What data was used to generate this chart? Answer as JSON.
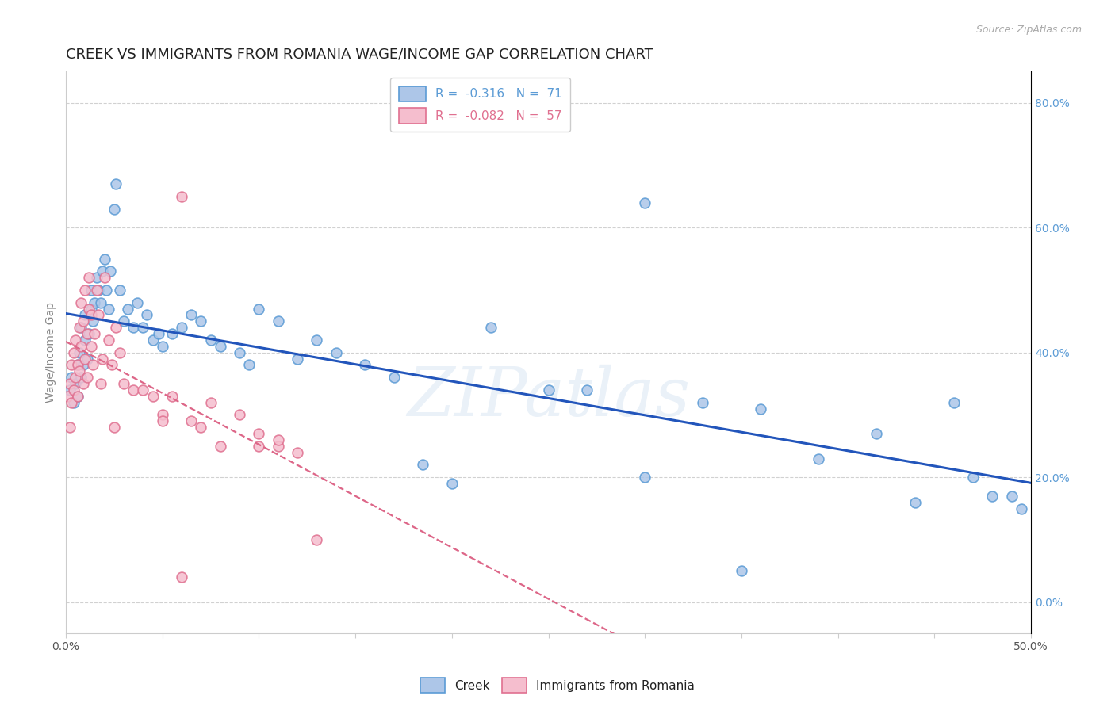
{
  "title": "CREEK VS IMMIGRANTS FROM ROMANIA WAGE/INCOME GAP CORRELATION CHART",
  "source": "Source: ZipAtlas.com",
  "ylabel": "Wage/Income Gap",
  "xlim": [
    0.0,
    0.5
  ],
  "ylim": [
    -0.05,
    0.85
  ],
  "xticks": [
    0.0,
    0.05,
    0.1,
    0.15,
    0.2,
    0.25,
    0.3,
    0.35,
    0.4,
    0.45,
    0.5
  ],
  "xticklabels_show": [
    "0.0%",
    "50.0%"
  ],
  "yticks": [
    0.0,
    0.2,
    0.4,
    0.6,
    0.8
  ],
  "yticklabels_right": [
    "0.0%",
    "20.0%",
    "40.0%",
    "60.0%",
    "80.0%"
  ],
  "creek_color": "#adc6e8",
  "romania_color": "#f5bece",
  "creek_edge_color": "#5b9bd5",
  "romania_edge_color": "#e07090",
  "trend_creek_color": "#2255bb",
  "trend_romania_color": "#dd6688",
  "watermark": "ZIPatlas",
  "legend_R_creek": "-0.316",
  "legend_N_creek": "71",
  "legend_R_romania": "-0.082",
  "legend_N_romania": "57",
  "creek_x": [
    0.002,
    0.003,
    0.004,
    0.005,
    0.006,
    0.006,
    0.007,
    0.008,
    0.008,
    0.009,
    0.01,
    0.01,
    0.011,
    0.012,
    0.013,
    0.013,
    0.014,
    0.015,
    0.016,
    0.017,
    0.018,
    0.019,
    0.02,
    0.021,
    0.022,
    0.023,
    0.025,
    0.026,
    0.028,
    0.03,
    0.032,
    0.035,
    0.037,
    0.04,
    0.042,
    0.045,
    0.048,
    0.05,
    0.055,
    0.06,
    0.065,
    0.07,
    0.075,
    0.08,
    0.09,
    0.095,
    0.1,
    0.11,
    0.12,
    0.13,
    0.14,
    0.155,
    0.17,
    0.185,
    0.2,
    0.22,
    0.25,
    0.27,
    0.3,
    0.33,
    0.36,
    0.39,
    0.42,
    0.44,
    0.46,
    0.47,
    0.48,
    0.49,
    0.495,
    0.3,
    0.35
  ],
  "creek_y": [
    0.34,
    0.36,
    0.32,
    0.35,
    0.38,
    0.33,
    0.4,
    0.36,
    0.44,
    0.38,
    0.42,
    0.46,
    0.39,
    0.43,
    0.5,
    0.47,
    0.45,
    0.48,
    0.52,
    0.5,
    0.48,
    0.53,
    0.55,
    0.5,
    0.47,
    0.53,
    0.63,
    0.67,
    0.5,
    0.45,
    0.47,
    0.44,
    0.48,
    0.44,
    0.46,
    0.42,
    0.43,
    0.41,
    0.43,
    0.44,
    0.46,
    0.45,
    0.42,
    0.41,
    0.4,
    0.38,
    0.47,
    0.45,
    0.39,
    0.42,
    0.4,
    0.38,
    0.36,
    0.22,
    0.19,
    0.44,
    0.34,
    0.34,
    0.64,
    0.32,
    0.31,
    0.23,
    0.27,
    0.16,
    0.32,
    0.2,
    0.17,
    0.17,
    0.15,
    0.2,
    0.05
  ],
  "romania_x": [
    0.001,
    0.002,
    0.002,
    0.003,
    0.003,
    0.004,
    0.004,
    0.005,
    0.005,
    0.006,
    0.006,
    0.007,
    0.007,
    0.008,
    0.008,
    0.009,
    0.009,
    0.01,
    0.01,
    0.011,
    0.011,
    0.012,
    0.012,
    0.013,
    0.013,
    0.014,
    0.015,
    0.016,
    0.017,
    0.018,
    0.019,
    0.02,
    0.022,
    0.024,
    0.026,
    0.028,
    0.03,
    0.035,
    0.04,
    0.045,
    0.05,
    0.055,
    0.06,
    0.065,
    0.07,
    0.075,
    0.08,
    0.09,
    0.1,
    0.11,
    0.12,
    0.13,
    0.11,
    0.1,
    0.05,
    0.025,
    0.06
  ],
  "romania_y": [
    0.33,
    0.35,
    0.28,
    0.32,
    0.38,
    0.34,
    0.4,
    0.36,
    0.42,
    0.33,
    0.38,
    0.44,
    0.37,
    0.41,
    0.48,
    0.35,
    0.45,
    0.39,
    0.5,
    0.36,
    0.43,
    0.47,
    0.52,
    0.41,
    0.46,
    0.38,
    0.43,
    0.5,
    0.46,
    0.35,
    0.39,
    0.52,
    0.42,
    0.38,
    0.44,
    0.4,
    0.35,
    0.34,
    0.34,
    0.33,
    0.3,
    0.33,
    0.65,
    0.29,
    0.28,
    0.32,
    0.25,
    0.3,
    0.27,
    0.25,
    0.24,
    0.1,
    0.26,
    0.25,
    0.29,
    0.28,
    0.04
  ],
  "background_color": "#ffffff",
  "grid_color": "#cccccc",
  "marker_size": 85,
  "title_fontsize": 13,
  "axis_label_fontsize": 10,
  "tick_fontsize": 10,
  "legend_fontsize": 11,
  "source_fontsize": 9,
  "right_ytick_color": "#5b9bd5",
  "right_ytick_fontsize": 10
}
